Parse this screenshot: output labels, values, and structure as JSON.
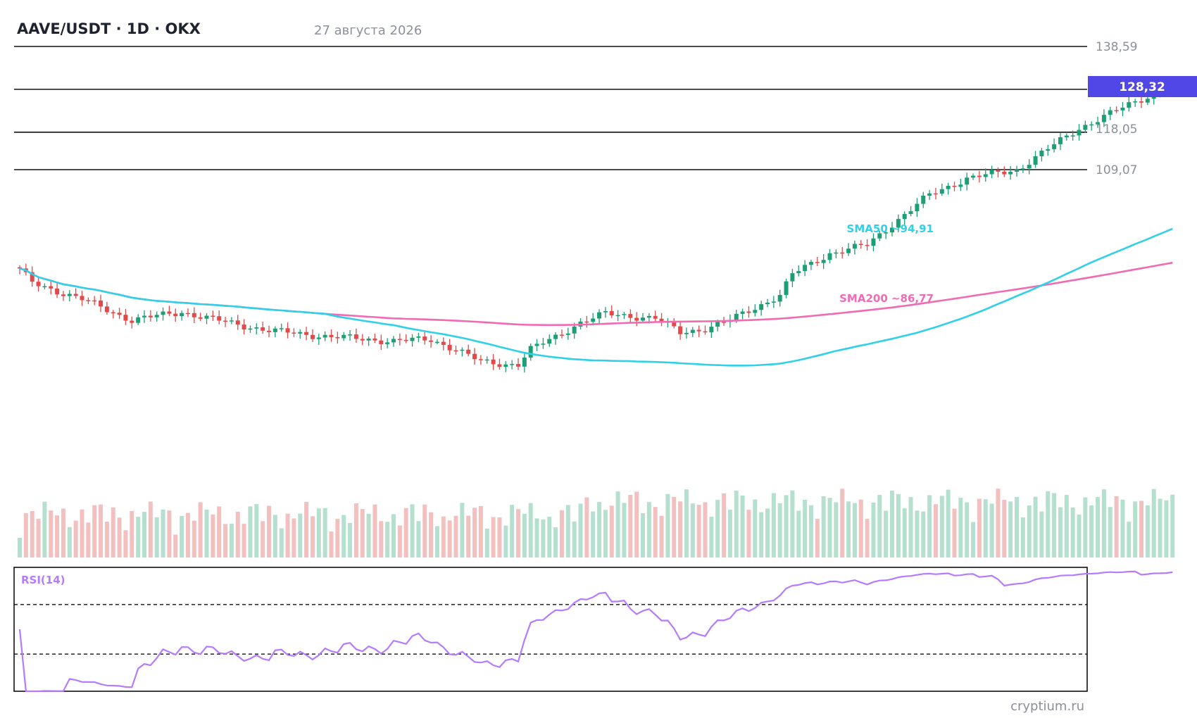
{
  "header": {
    "title": "AAVE/USDT · 1D · OKX",
    "date": "27 августа 2026"
  },
  "watermark": "cryptium.ru",
  "colors": {
    "up": "#1e9e74",
    "down": "#e04a4a",
    "volume_up": "#b5e0cf",
    "volume_down": "#f3c0c0",
    "sma50": "#2fd0e8",
    "sma200": "#f06ab4",
    "rsi": "#b57bff",
    "badge": "#5047e6",
    "level": "#111111"
  },
  "chart_data": {
    "type": "candlestick",
    "price_axis": {
      "ticks": [
        {
          "value": 138.59,
          "label": "138,59"
        },
        {
          "value": 118.05,
          "label": "118,05"
        },
        {
          "value": 109.07,
          "label": "109,07"
        }
      ],
      "last_price": {
        "value": 128.32,
        "label": "128,32"
      },
      "horizontal_levels": [
        138.59,
        128.32,
        118.05,
        109.07
      ]
    },
    "indicators": {
      "sma50": {
        "label": "SMA50 ~94,91",
        "last": 94.91
      },
      "sma200": {
        "label": "SMA200 ~86,77",
        "last": 86.77
      }
    },
    "rsi": {
      "label": "RSI(14)",
      "period": 14,
      "levels": [
        70,
        30
      ]
    }
  }
}
